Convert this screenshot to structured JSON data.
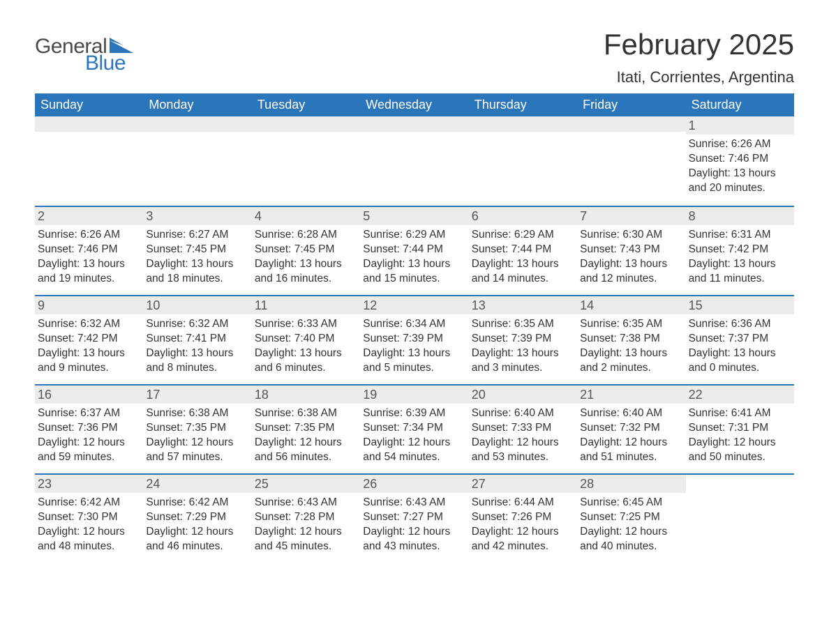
{
  "brand": {
    "word1": "General",
    "word2": "Blue"
  },
  "colors": {
    "header_bg": "#2b75bb",
    "header_text": "#ffffff",
    "accent": "#2b75bb",
    "strip_bg": "#ececec",
    "body_text": "#333333",
    "logo_gray": "#4a4a4a"
  },
  "title": "February 2025",
  "location": "Itati, Corrientes, Argentina",
  "weekdays": [
    "Sunday",
    "Monday",
    "Tuesday",
    "Wednesday",
    "Thursday",
    "Friday",
    "Saturday"
  ],
  "labels": {
    "sunrise": "Sunrise",
    "sunset": "Sunset",
    "daylight": "Daylight"
  },
  "weeks": [
    [
      {
        "empty": true
      },
      {
        "empty": true
      },
      {
        "empty": true
      },
      {
        "empty": true
      },
      {
        "empty": true
      },
      {
        "empty": true
      },
      {
        "day": 1,
        "sunrise": "6:26 AM",
        "sunset": "7:46 PM",
        "daylight_h": 13,
        "daylight_m": 20
      }
    ],
    [
      {
        "day": 2,
        "sunrise": "6:26 AM",
        "sunset": "7:46 PM",
        "daylight_h": 13,
        "daylight_m": 19
      },
      {
        "day": 3,
        "sunrise": "6:27 AM",
        "sunset": "7:45 PM",
        "daylight_h": 13,
        "daylight_m": 18
      },
      {
        "day": 4,
        "sunrise": "6:28 AM",
        "sunset": "7:45 PM",
        "daylight_h": 13,
        "daylight_m": 16
      },
      {
        "day": 5,
        "sunrise": "6:29 AM",
        "sunset": "7:44 PM",
        "daylight_h": 13,
        "daylight_m": 15
      },
      {
        "day": 6,
        "sunrise": "6:29 AM",
        "sunset": "7:44 PM",
        "daylight_h": 13,
        "daylight_m": 14
      },
      {
        "day": 7,
        "sunrise": "6:30 AM",
        "sunset": "7:43 PM",
        "daylight_h": 13,
        "daylight_m": 12
      },
      {
        "day": 8,
        "sunrise": "6:31 AM",
        "sunset": "7:42 PM",
        "daylight_h": 13,
        "daylight_m": 11
      }
    ],
    [
      {
        "day": 9,
        "sunrise": "6:32 AM",
        "sunset": "7:42 PM",
        "daylight_h": 13,
        "daylight_m": 9
      },
      {
        "day": 10,
        "sunrise": "6:32 AM",
        "sunset": "7:41 PM",
        "daylight_h": 13,
        "daylight_m": 8
      },
      {
        "day": 11,
        "sunrise": "6:33 AM",
        "sunset": "7:40 PM",
        "daylight_h": 13,
        "daylight_m": 6
      },
      {
        "day": 12,
        "sunrise": "6:34 AM",
        "sunset": "7:39 PM",
        "daylight_h": 13,
        "daylight_m": 5
      },
      {
        "day": 13,
        "sunrise": "6:35 AM",
        "sunset": "7:39 PM",
        "daylight_h": 13,
        "daylight_m": 3
      },
      {
        "day": 14,
        "sunrise": "6:35 AM",
        "sunset": "7:38 PM",
        "daylight_h": 13,
        "daylight_m": 2
      },
      {
        "day": 15,
        "sunrise": "6:36 AM",
        "sunset": "7:37 PM",
        "daylight_h": 13,
        "daylight_m": 0
      }
    ],
    [
      {
        "day": 16,
        "sunrise": "6:37 AM",
        "sunset": "7:36 PM",
        "daylight_h": 12,
        "daylight_m": 59
      },
      {
        "day": 17,
        "sunrise": "6:38 AM",
        "sunset": "7:35 PM",
        "daylight_h": 12,
        "daylight_m": 57
      },
      {
        "day": 18,
        "sunrise": "6:38 AM",
        "sunset": "7:35 PM",
        "daylight_h": 12,
        "daylight_m": 56
      },
      {
        "day": 19,
        "sunrise": "6:39 AM",
        "sunset": "7:34 PM",
        "daylight_h": 12,
        "daylight_m": 54
      },
      {
        "day": 20,
        "sunrise": "6:40 AM",
        "sunset": "7:33 PM",
        "daylight_h": 12,
        "daylight_m": 53
      },
      {
        "day": 21,
        "sunrise": "6:40 AM",
        "sunset": "7:32 PM",
        "daylight_h": 12,
        "daylight_m": 51
      },
      {
        "day": 22,
        "sunrise": "6:41 AM",
        "sunset": "7:31 PM",
        "daylight_h": 12,
        "daylight_m": 50
      }
    ],
    [
      {
        "day": 23,
        "sunrise": "6:42 AM",
        "sunset": "7:30 PM",
        "daylight_h": 12,
        "daylight_m": 48
      },
      {
        "day": 24,
        "sunrise": "6:42 AM",
        "sunset": "7:29 PM",
        "daylight_h": 12,
        "daylight_m": 46
      },
      {
        "day": 25,
        "sunrise": "6:43 AM",
        "sunset": "7:28 PM",
        "daylight_h": 12,
        "daylight_m": 45
      },
      {
        "day": 26,
        "sunrise": "6:43 AM",
        "sunset": "7:27 PM",
        "daylight_h": 12,
        "daylight_m": 43
      },
      {
        "day": 27,
        "sunrise": "6:44 AM",
        "sunset": "7:26 PM",
        "daylight_h": 12,
        "daylight_m": 42
      },
      {
        "day": 28,
        "sunrise": "6:45 AM",
        "sunset": "7:25 PM",
        "daylight_h": 12,
        "daylight_m": 40
      },
      {
        "empty": true,
        "nostrip": true
      }
    ]
  ]
}
